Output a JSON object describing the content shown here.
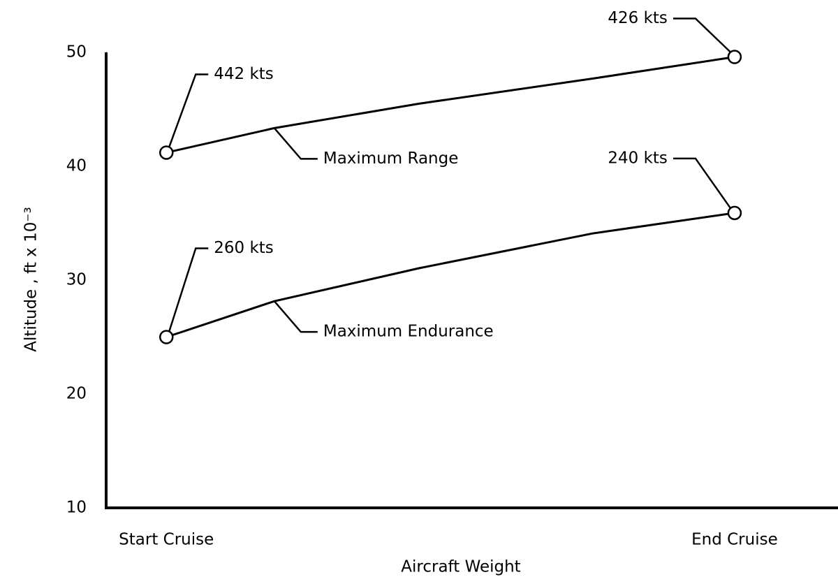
{
  "chart_data": {
    "type": "line",
    "xlabel": "Aircraft Weight",
    "ylabel": "Altitude , ft x 10⁻³",
    "xlim": [
      -0.106,
      1.182
    ],
    "xticks": [
      {
        "value": 0,
        "label": "Start Cruise"
      },
      {
        "value": 1,
        "label": "End Cruise"
      }
    ],
    "ylim": [
      10,
      50
    ],
    "yticks": [
      10,
      20,
      30,
      40,
      50
    ],
    "grid": false,
    "color": "#000000",
    "series": [
      {
        "name": "Maximum Range",
        "x": [
          0,
          0.19,
          0.445,
          0.75,
          1
        ],
        "values": [
          41.2,
          43.35,
          45.5,
          47.7,
          49.6
        ],
        "start_label": "442 kts",
        "end_label": "426 kts"
      },
      {
        "name": "Maximum Endurance",
        "x": [
          0,
          0.19,
          0.445,
          0.75,
          1
        ],
        "values": [
          25.0,
          28.15,
          31.05,
          34.1,
          35.9
        ],
        "start_label": "260 kts",
        "end_label": "240 kts"
      }
    ]
  }
}
